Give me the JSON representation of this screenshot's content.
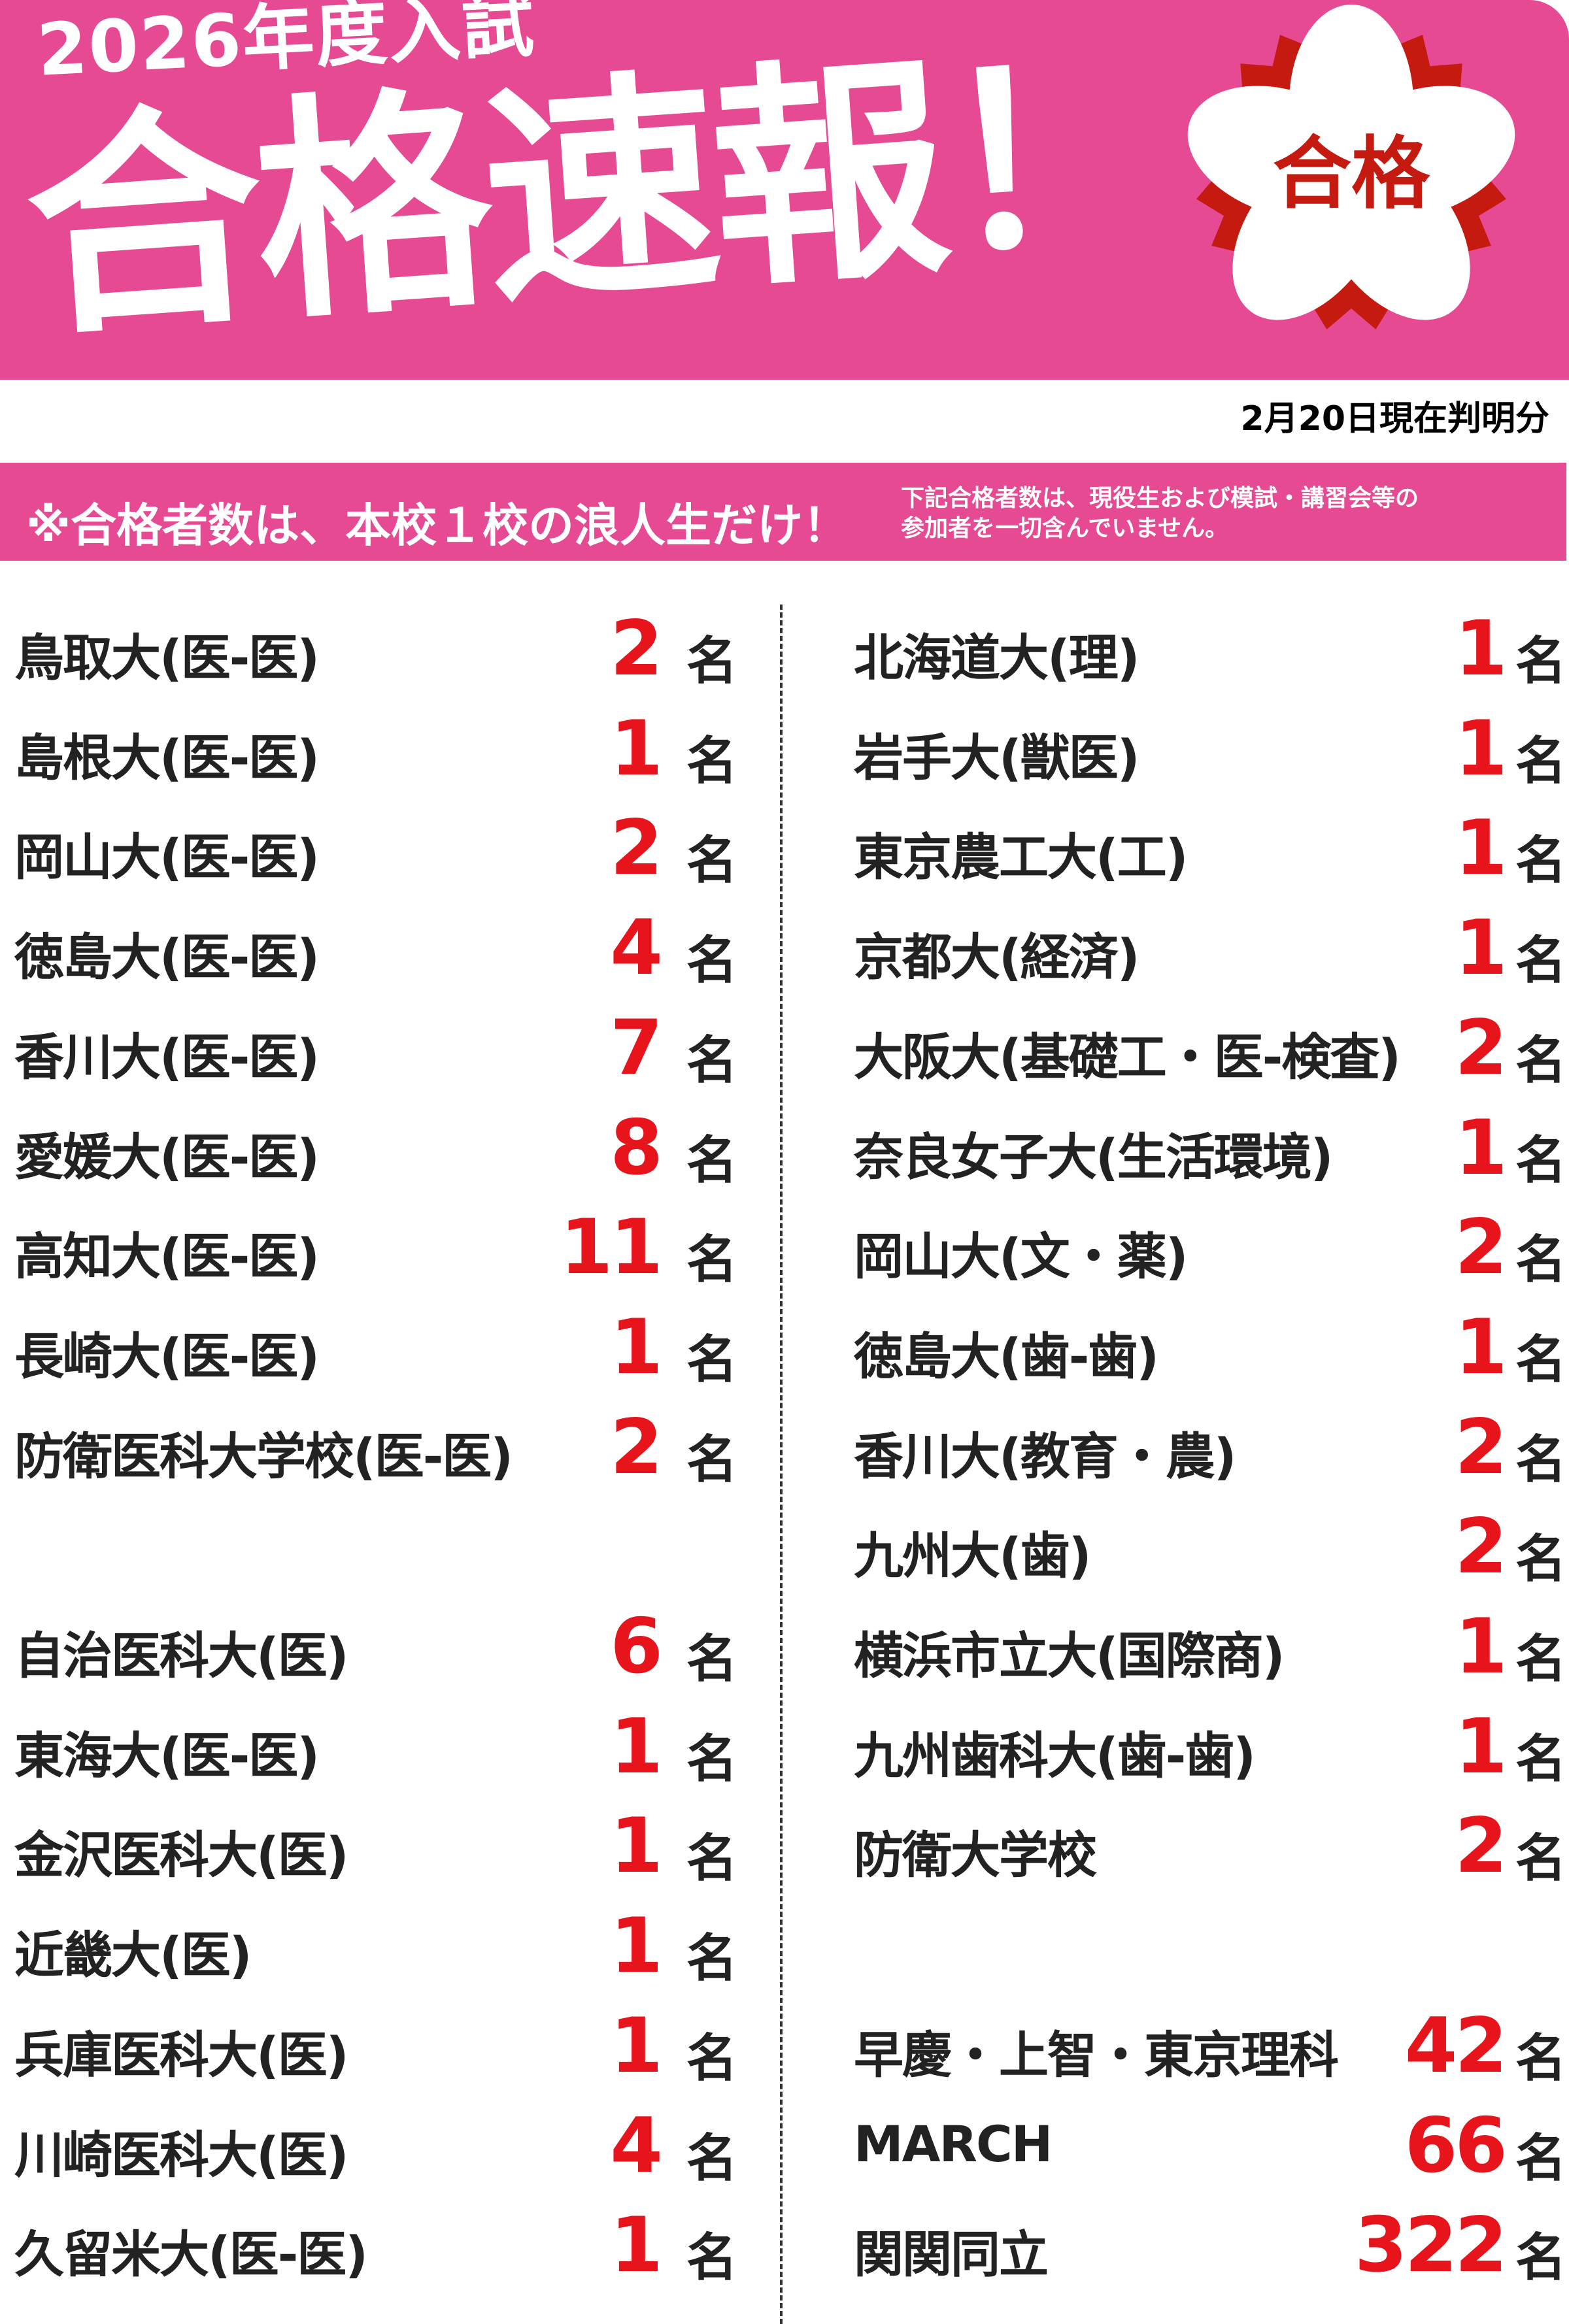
{
  "header": {
    "year_label": "2026年度入試",
    "title": "合格速報！",
    "stamp_text": "合格",
    "colors": {
      "brand_pink": "#E64A93",
      "stamp_red": "#C41A10",
      "count_red": "#E8141B"
    }
  },
  "as_of": "2月20日現在判明分",
  "notice": {
    "main": "※合格者数は、本校１校の浪人生だけ！",
    "sub_line1": "下記合格者数は、現役生および模試・講習会等の",
    "sub_line2": "参加者を一切含んでいません。"
  },
  "unit": "名",
  "left_column": [
    {
      "name": "鳥取大(医-医)",
      "count": "2"
    },
    {
      "name": "島根大(医-医)",
      "count": "1"
    },
    {
      "name": "岡山大(医-医)",
      "count": "2"
    },
    {
      "name": "徳島大(医-医)",
      "count": "4"
    },
    {
      "name": "香川大(医-医)",
      "count": "7"
    },
    {
      "name": "愛媛大(医-医)",
      "count": "8"
    },
    {
      "name": "高知大(医-医)",
      "count": "11"
    },
    {
      "name": "長崎大(医-医)",
      "count": "1"
    },
    {
      "name": "防衛医科大学校(医-医)",
      "count": "2"
    },
    null,
    {
      "name": "自治医科大(医)",
      "count": "6"
    },
    {
      "name": "東海大(医-医)",
      "count": "1"
    },
    {
      "name": "金沢医科大(医)",
      "count": "1"
    },
    {
      "name": "近畿大(医)",
      "count": "1"
    },
    {
      "name": "兵庫医科大(医)",
      "count": "1"
    },
    {
      "name": "川崎医科大(医)",
      "count": "4"
    },
    {
      "name": "久留米大(医-医)",
      "count": "1"
    }
  ],
  "right_column": [
    {
      "name": "北海道大(理)",
      "count": "1"
    },
    {
      "name": "岩手大(獣医)",
      "count": "1"
    },
    {
      "name": "東京農工大(工)",
      "count": "1"
    },
    {
      "name": "京都大(経済)",
      "count": "1"
    },
    {
      "name": "大阪大(基礎工・医-検査)",
      "count": "2"
    },
    {
      "name": "奈良女子大(生活環境)",
      "count": "1"
    },
    {
      "name": "岡山大(文・薬)",
      "count": "2"
    },
    {
      "name": "徳島大(歯-歯)",
      "count": "1"
    },
    {
      "name": "香川大(教育・農)",
      "count": "2"
    },
    {
      "name": "九州大(歯)",
      "count": "2"
    },
    {
      "name": "横浜市立大(国際商)",
      "count": "1"
    },
    {
      "name": "九州歯科大(歯-歯)",
      "count": "1"
    },
    {
      "name": "防衛大学校",
      "count": "2"
    },
    null,
    {
      "name": "早慶・上智・東京理科",
      "count": "42"
    },
    {
      "name": "MARCH",
      "count": "66"
    },
    {
      "name": "関関同立",
      "count": "322"
    }
  ]
}
